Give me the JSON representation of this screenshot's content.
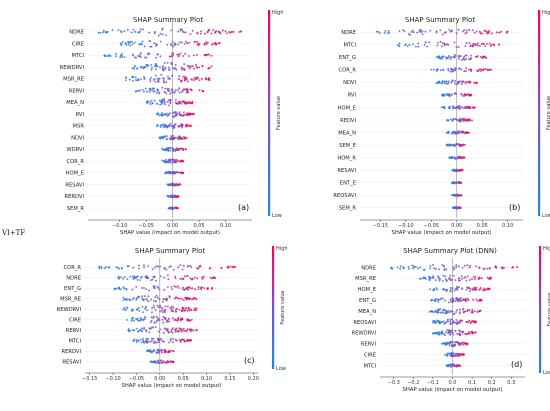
{
  "figure_label": "VI+TF",
  "colors": {
    "low": "#1e88e5",
    "high": "#ff0052"
  },
  "chart_data": [
    {
      "type": "scatter",
      "title": "SHAP Summary Plot",
      "xlabel": "SHAP value (impact on model output)",
      "colorbar_label": "Feature value",
      "colorbar_high": "High",
      "colorbar_low": "Low",
      "panel_label": "(a)",
      "xlim": [
        -0.16,
        0.15
      ],
      "xticks": [
        -0.1,
        -0.05,
        0.0,
        0.05,
        0.1
      ],
      "xtick_labels": [
        "−0.10",
        "−0.05",
        "0.00",
        "0.05",
        "0.10"
      ],
      "features": [
        {
          "name": "NDRE",
          "min": -0.14,
          "max": 0.13,
          "spread": 0.9
        },
        {
          "name": "CIRE",
          "min": -0.1,
          "max": 0.09,
          "spread": 0.9
        },
        {
          "name": "MTCI",
          "min": -0.13,
          "max": 0.08,
          "spread": 0.7
        },
        {
          "name": "REWDRVI",
          "min": -0.08,
          "max": 0.08,
          "spread": 1.0
        },
        {
          "name": "MSR_RE",
          "min": -0.09,
          "max": 0.07,
          "spread": 1.0
        },
        {
          "name": "RERVI",
          "min": -0.07,
          "max": 0.06,
          "spread": 0.8
        },
        {
          "name": "MEA_N",
          "min": -0.05,
          "max": 0.04,
          "spread": 0.8
        },
        {
          "name": "RVI",
          "min": -0.03,
          "max": 0.04,
          "spread": 0.7
        },
        {
          "name": "MSR",
          "min": -0.03,
          "max": 0.035,
          "spread": 0.6
        },
        {
          "name": "NDVI",
          "min": -0.025,
          "max": 0.03,
          "spread": 0.6
        },
        {
          "name": "WDRVI",
          "min": -0.02,
          "max": 0.025,
          "spread": 0.5
        },
        {
          "name": "COR_R",
          "min": -0.02,
          "max": 0.02,
          "spread": 0.5
        },
        {
          "name": "HOM_E",
          "min": -0.015,
          "max": 0.02,
          "spread": 0.4
        },
        {
          "name": "RESAVI",
          "min": -0.012,
          "max": 0.015,
          "spread": 0.3
        },
        {
          "name": "RERDVI",
          "min": -0.01,
          "max": 0.012,
          "spread": 0.3
        },
        {
          "name": "SEM_R",
          "min": -0.008,
          "max": 0.01,
          "spread": 0.25
        }
      ]
    },
    {
      "type": "scatter",
      "title": "SHAP Summary Plot",
      "xlabel": "SHAP value (impact on model output)",
      "colorbar_label": "Feature value",
      "colorbar_high": "High",
      "colorbar_low": "Low",
      "panel_label": "(b)",
      "xlim": [
        -0.19,
        0.13
      ],
      "xticks": [
        -0.15,
        -0.1,
        -0.05,
        0.0,
        0.05,
        0.1
      ],
      "xtick_labels": [
        "−0.15",
        "−0.10",
        "−0.05",
        "0.00",
        "0.05",
        "0.10"
      ],
      "features": [
        {
          "name": "NDRE",
          "min": -0.16,
          "max": 0.1,
          "spread": 0.8
        },
        {
          "name": "MTCI",
          "min": -0.13,
          "max": 0.09,
          "spread": 0.7
        },
        {
          "name": "ENT_G",
          "min": -0.04,
          "max": 0.06,
          "spread": 0.6
        },
        {
          "name": "COR_R",
          "min": -0.05,
          "max": 0.07,
          "spread": 0.5
        },
        {
          "name": "NDVI",
          "min": -0.04,
          "max": 0.04,
          "spread": 0.5
        },
        {
          "name": "RVI",
          "min": -0.03,
          "max": 0.03,
          "spread": 0.4
        },
        {
          "name": "HOM_E",
          "min": -0.03,
          "max": 0.04,
          "spread": 0.4
        },
        {
          "name": "REDVI",
          "min": -0.02,
          "max": 0.03,
          "spread": 0.4
        },
        {
          "name": "MEA_N",
          "min": -0.02,
          "max": 0.025,
          "spread": 0.35
        },
        {
          "name": "SEM_E",
          "min": -0.02,
          "max": 0.02,
          "spread": 0.3
        },
        {
          "name": "HOM_R",
          "min": -0.015,
          "max": 0.015,
          "spread": 0.3
        },
        {
          "name": "RESAVI",
          "min": -0.01,
          "max": 0.012,
          "spread": 0.25
        },
        {
          "name": "ENT_E",
          "min": -0.01,
          "max": 0.01,
          "spread": 0.25
        },
        {
          "name": "REOSAVI",
          "min": -0.01,
          "max": 0.01,
          "spread": 0.2
        },
        {
          "name": "SEM_R",
          "min": -0.008,
          "max": 0.008,
          "spread": 0.2
        }
      ]
    },
    {
      "type": "scatter",
      "title": "SHAP Summary Plot",
      "xlabel": "SHAP value (impact on model output)",
      "colorbar_label": "Feature value",
      "colorbar_high": "High",
      "colorbar_low": "Low",
      "panel_label": "(c)",
      "xlim": [
        -0.16,
        0.21
      ],
      "xticks": [
        -0.15,
        -0.1,
        -0.05,
        0.0,
        0.05,
        0.1,
        0.15,
        0.2
      ],
      "xtick_labels": [
        "−0.15",
        "−0.10",
        "−0.05",
        "0.00",
        "0.05",
        "0.10",
        "0.15",
        "0.20"
      ],
      "features": [
        {
          "name": "COR_R",
          "min": -0.13,
          "max": 0.17,
          "spread": 0.7
        },
        {
          "name": "NDRE",
          "min": -0.1,
          "max": 0.12,
          "spread": 0.8
        },
        {
          "name": "ENT_G",
          "min": -0.1,
          "max": 0.12,
          "spread": 0.7
        },
        {
          "name": "MSR_RE",
          "min": -0.08,
          "max": 0.08,
          "spread": 0.9
        },
        {
          "name": "REWDRVI",
          "min": -0.08,
          "max": 0.08,
          "spread": 1.0
        },
        {
          "name": "CIRE",
          "min": -0.07,
          "max": 0.07,
          "spread": 0.9
        },
        {
          "name": "RERVI",
          "min": -0.07,
          "max": 0.08,
          "spread": 0.9
        },
        {
          "name": "MTCI",
          "min": -0.06,
          "max": 0.07,
          "spread": 0.8
        },
        {
          "name": "RERDVI",
          "min": -0.03,
          "max": 0.03,
          "spread": 0.5
        },
        {
          "name": "RESAVI",
          "min": -0.02,
          "max": 0.03,
          "spread": 0.4
        }
      ]
    },
    {
      "type": "scatter",
      "title": "SHAP Summary Plot (DNN)",
      "xlabel": "SHAP value (impact on model output)",
      "colorbar_label": "Feature value",
      "colorbar_high": "High",
      "colorbar_low": "Low",
      "panel_label": "(d)",
      "xlim": [
        -0.37,
        0.37
      ],
      "xticks": [
        -0.3,
        -0.2,
        -0.1,
        0.0,
        0.1,
        0.2,
        0.3
      ],
      "xtick_labels": [
        "−0.3",
        "−0.2",
        "−0.1",
        "0.0",
        "0.1",
        "0.2",
        "0.3"
      ],
      "features": [
        {
          "name": "NDRE",
          "min": -0.33,
          "max": 0.33,
          "spread": 0.8
        },
        {
          "name": "MSR_RE",
          "min": -0.18,
          "max": 0.2,
          "spread": 0.8
        },
        {
          "name": "HOM_E",
          "min": -0.12,
          "max": 0.2,
          "spread": 0.7
        },
        {
          "name": "ENT_G",
          "min": -0.12,
          "max": 0.15,
          "spread": 0.7
        },
        {
          "name": "MEA_N",
          "min": -0.12,
          "max": 0.15,
          "spread": 0.8
        },
        {
          "name": "REOSAVI",
          "min": -0.1,
          "max": 0.12,
          "spread": 0.8
        },
        {
          "name": "REWDRVI",
          "min": -0.1,
          "max": 0.12,
          "spread": 0.8
        },
        {
          "name": "RERVI",
          "min": -0.06,
          "max": 0.08,
          "spread": 0.6
        },
        {
          "name": "CIRE",
          "min": -0.04,
          "max": 0.06,
          "spread": 0.5
        },
        {
          "name": "MTCI",
          "min": -0.03,
          "max": 0.04,
          "spread": 0.4
        }
      ]
    }
  ]
}
